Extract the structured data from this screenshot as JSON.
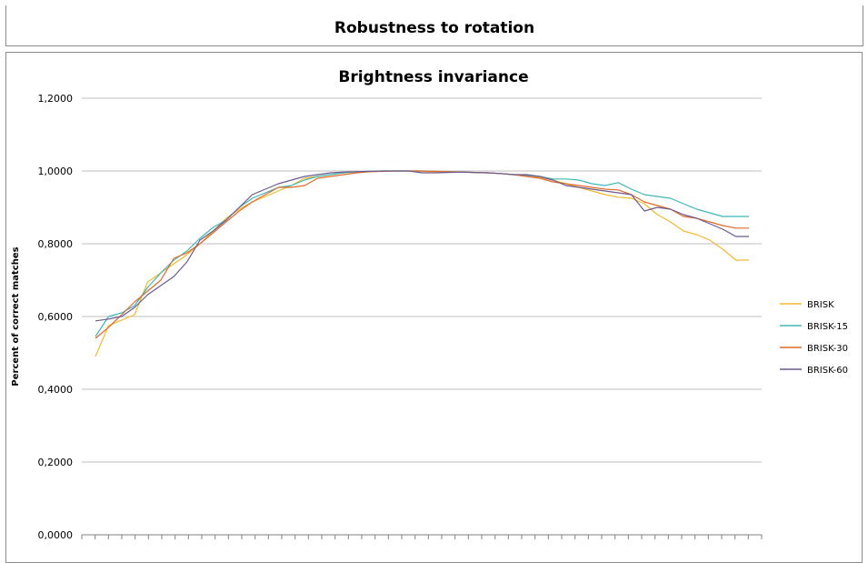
{
  "header": {
    "title": "Robustness to rotation"
  },
  "chart_data": {
    "type": "line",
    "title": "Brightness invariance",
    "xlabel": "",
    "ylabel": "Percent of correct matches",
    "ylim": [
      0,
      1.2
    ],
    "yticks": [
      0,
      0.2,
      0.4,
      0.6,
      0.8,
      1.0,
      1.2
    ],
    "ytick_labels": [
      "0,0000",
      "0,2000",
      "0,4000",
      "0,6000",
      "0,8000",
      "1,0000",
      "1,2000"
    ],
    "grid": true,
    "legend_position": "right",
    "n_points": 51,
    "series": [
      {
        "name": "BRISK",
        "color": "#f2b92e",
        "values": [
          0.49,
          0.575,
          0.59,
          0.605,
          0.695,
          0.72,
          0.745,
          0.77,
          0.8,
          0.835,
          0.87,
          0.895,
          0.915,
          0.93,
          0.945,
          0.96,
          0.98,
          0.985,
          0.99,
          0.995,
          0.998,
          0.999,
          1.0,
          1.0,
          1.0,
          0.999,
          0.998,
          0.998,
          0.997,
          0.996,
          0.995,
          0.993,
          0.99,
          0.985,
          0.983,
          0.975,
          0.965,
          0.955,
          0.945,
          0.935,
          0.928,
          0.925,
          0.91,
          0.88,
          0.86,
          0.835,
          0.825,
          0.81,
          0.785,
          0.755,
          0.755
        ]
      },
      {
        "name": "BRISK-15",
        "color": "#3fb7b7",
        "values": [
          0.545,
          0.6,
          0.61,
          0.63,
          0.68,
          0.72,
          0.755,
          0.78,
          0.815,
          0.845,
          0.865,
          0.9,
          0.925,
          0.94,
          0.955,
          0.96,
          0.975,
          0.985,
          0.99,
          0.995,
          0.998,
          0.999,
          1.0,
          1.0,
          1.0,
          1.0,
          0.999,
          0.998,
          0.997,
          0.996,
          0.995,
          0.993,
          0.99,
          0.988,
          0.985,
          0.978,
          0.978,
          0.975,
          0.965,
          0.96,
          0.968,
          0.95,
          0.935,
          0.93,
          0.925,
          0.91,
          0.895,
          0.885,
          0.875,
          0.875,
          0.875
        ]
      },
      {
        "name": "BRISK-30",
        "color": "#e06a2c",
        "values": [
          0.54,
          0.57,
          0.605,
          0.64,
          0.67,
          0.7,
          0.76,
          0.775,
          0.8,
          0.83,
          0.86,
          0.89,
          0.915,
          0.935,
          0.955,
          0.955,
          0.96,
          0.98,
          0.985,
          0.99,
          0.995,
          0.998,
          0.999,
          1.0,
          1.0,
          1.0,
          0.999,
          0.998,
          0.997,
          0.996,
          0.995,
          0.993,
          0.99,
          0.985,
          0.98,
          0.97,
          0.965,
          0.96,
          0.955,
          0.95,
          0.948,
          0.935,
          0.915,
          0.905,
          0.895,
          0.875,
          0.87,
          0.86,
          0.85,
          0.843,
          0.843
        ]
      },
      {
        "name": "BRISK-60",
        "color": "#6b5a8e",
        "values": [
          0.588,
          0.593,
          0.6,
          0.625,
          0.66,
          0.685,
          0.71,
          0.75,
          0.81,
          0.835,
          0.865,
          0.9,
          0.935,
          0.95,
          0.965,
          0.975,
          0.985,
          0.99,
          0.995,
          0.997,
          0.998,
          0.999,
          1.0,
          1.0,
          1.0,
          0.995,
          0.995,
          0.996,
          0.997,
          0.996,
          0.995,
          0.993,
          0.99,
          0.99,
          0.985,
          0.975,
          0.96,
          0.955,
          0.95,
          0.945,
          0.94,
          0.935,
          0.89,
          0.9,
          0.895,
          0.88,
          0.87,
          0.855,
          0.84,
          0.82,
          0.82
        ]
      }
    ]
  }
}
